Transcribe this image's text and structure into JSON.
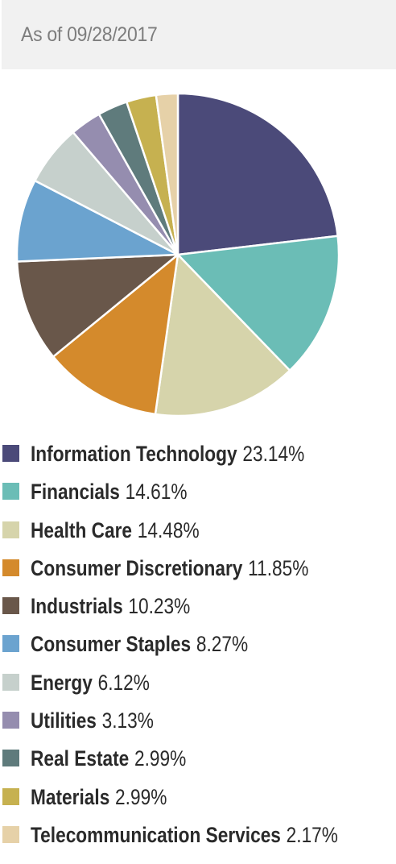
{
  "header": {
    "as_of": "As of 09/28/2017"
  },
  "chart_data": {
    "type": "pie",
    "title": "",
    "unit": "%",
    "slices": [
      {
        "label": "Information Technology",
        "value": 23.14,
        "display": "23.14%",
        "color": "#4b4a79"
      },
      {
        "label": "Financials",
        "value": 14.61,
        "display": "14.61%",
        "color": "#6bbdb6"
      },
      {
        "label": "Health Care",
        "value": 14.48,
        "display": "14.48%",
        "color": "#d6d4ab"
      },
      {
        "label": "Consumer Discretionary",
        "value": 11.85,
        "display": "11.85%",
        "color": "#d48a2c"
      },
      {
        "label": "Industrials",
        "value": 10.23,
        "display": "10.23%",
        "color": "#69574a"
      },
      {
        "label": "Consumer Staples",
        "value": 8.27,
        "display": "8.27%",
        "color": "#6ba3cf"
      },
      {
        "label": "Energy",
        "value": 6.12,
        "display": "6.12%",
        "color": "#c6d0cc"
      },
      {
        "label": "Utilities",
        "value": 3.13,
        "display": "3.13%",
        "color": "#958daf"
      },
      {
        "label": "Real Estate",
        "value": 2.99,
        "display": "2.99%",
        "color": "#5f7b7c"
      },
      {
        "label": "Materials",
        "value": 2.99,
        "display": "2.99%",
        "color": "#c6b150"
      },
      {
        "label": "Telecommunication Services",
        "value": 2.17,
        "display": "2.17%",
        "color": "#e6d1a8"
      }
    ],
    "legend_position": "bottom",
    "start_angle": "12 o'clock",
    "direction": "clockwise"
  }
}
